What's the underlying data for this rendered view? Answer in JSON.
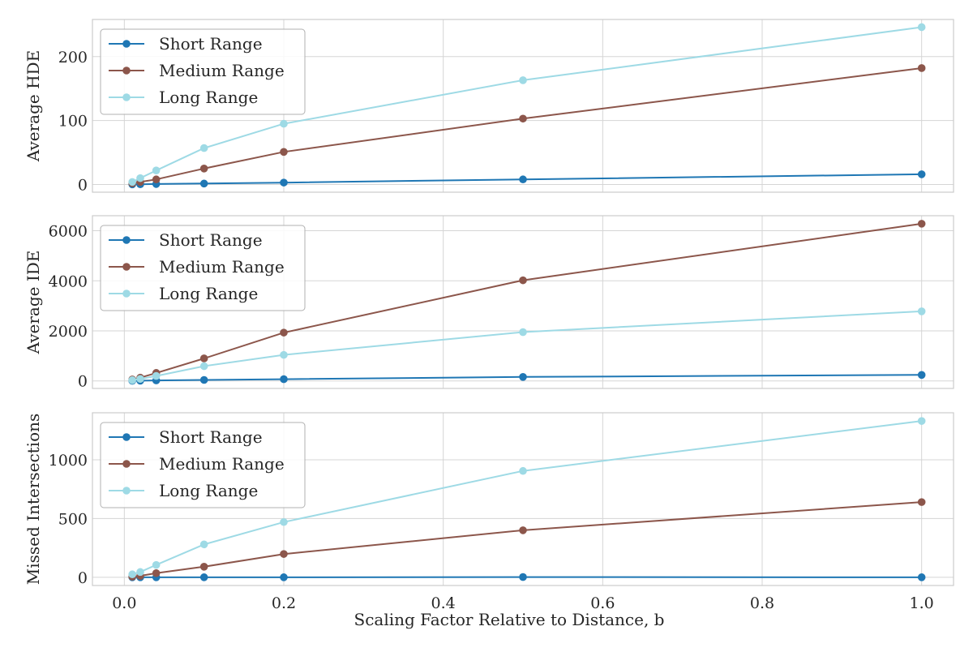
{
  "figure": {
    "xlabel": "Scaling Factor Relative to Distance, b",
    "xlim": [
      -0.04,
      1.04
    ],
    "xticks": [
      0.0,
      0.2,
      0.4,
      0.6,
      0.8,
      1.0
    ],
    "xtick_labels": [
      "0.0",
      "0.2",
      "0.4",
      "0.6",
      "0.8",
      "1.0"
    ],
    "colors": {
      "Short Range": "#1f77b4",
      "Medium Range": "#8c564b",
      "Long Range": "#9edae5"
    },
    "style": {
      "grid": true,
      "legend_position": "top-left",
      "background": "#ffffff",
      "grid_color": "#d5d5d5",
      "spine_color": "#cccccc"
    }
  },
  "chart_data": [
    {
      "type": "line",
      "title": "",
      "xlabel": "",
      "ylabel": "Average HDE",
      "ylim": [
        -12,
        258
      ],
      "yticks": [
        0,
        100,
        200
      ],
      "ytick_labels": [
        "0",
        "100",
        "200"
      ],
      "x": [
        0.01,
        0.02,
        0.04,
        0.1,
        0.2,
        0.5,
        1.0
      ],
      "series": [
        {
          "name": "Short Range",
          "values": [
            0.2,
            0.4,
            0.8,
            1.5,
            3,
            8,
            16
          ]
        },
        {
          "name": "Medium Range",
          "values": [
            2,
            4,
            8,
            25,
            51,
            103,
            182
          ]
        },
        {
          "name": "Long Range",
          "values": [
            4,
            10,
            22,
            57,
            95,
            163,
            246
          ]
        }
      ]
    },
    {
      "type": "line",
      "title": "",
      "xlabel": "",
      "ylabel": "Average IDE",
      "ylim": [
        -300,
        6600
      ],
      "yticks": [
        0,
        2000,
        4000,
        6000
      ],
      "ytick_labels": [
        "0",
        "2000",
        "4000",
        "6000"
      ],
      "x": [
        0.01,
        0.02,
        0.04,
        0.1,
        0.2,
        0.5,
        1.0
      ],
      "series": [
        {
          "name": "Short Range",
          "values": [
            5,
            10,
            20,
            40,
            70,
            160,
            240
          ]
        },
        {
          "name": "Medium Range",
          "values": [
            60,
            130,
            320,
            900,
            1930,
            4020,
            6280
          ]
        },
        {
          "name": "Long Range",
          "values": [
            30,
            80,
            200,
            590,
            1040,
            1950,
            2780
          ]
        }
      ]
    },
    {
      "type": "line",
      "title": "",
      "xlabel": "Scaling Factor Relative to Distance, b",
      "ylabel": "Missed Intersections",
      "ylim": [
        -70,
        1400
      ],
      "yticks": [
        0,
        500,
        1000
      ],
      "ytick_labels": [
        "0",
        "500",
        "1000"
      ],
      "x": [
        0.01,
        0.02,
        0.04,
        0.1,
        0.2,
        0.5,
        1.0
      ],
      "series": [
        {
          "name": "Short Range",
          "values": [
            0,
            0,
            0,
            0,
            0,
            2,
            0
          ]
        },
        {
          "name": "Medium Range",
          "values": [
            5,
            12,
            35,
            90,
            198,
            400,
            640
          ]
        },
        {
          "name": "Long Range",
          "values": [
            25,
            45,
            105,
            280,
            470,
            905,
            1330
          ]
        }
      ]
    }
  ]
}
